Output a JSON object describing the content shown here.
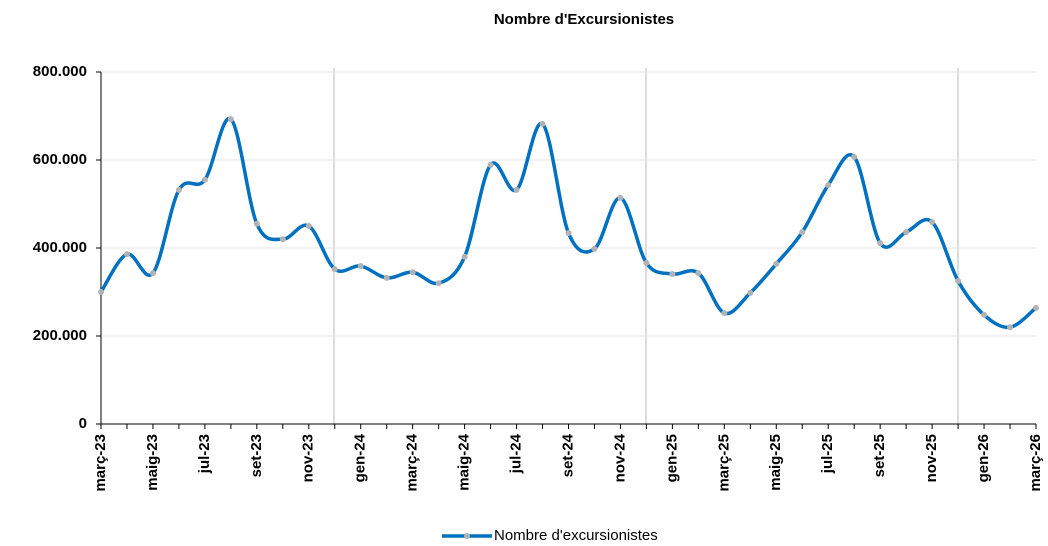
{
  "chart_data": {
    "type": "line",
    "title": "Nombre d'Excursionistes",
    "categories": [
      "març-23",
      null,
      "maig-23",
      null,
      "jul-23",
      null,
      "set-23",
      null,
      "nov-23",
      null,
      "gen-24",
      null,
      "març-24",
      null,
      "maig-24",
      null,
      "jul-24",
      null,
      "set-24",
      null,
      "nov-24",
      null,
      "gen-25",
      null,
      "març-25",
      null,
      "maig-25",
      null,
      "jul-25",
      null,
      "set-25",
      null,
      "nov-25",
      null,
      "gen-26",
      null,
      "març-26"
    ],
    "series": [
      {
        "name": "Nombre d'excursionistes",
        "color": "#0070c0",
        "marker_color": "#b3b3b3",
        "values": [
          300000,
          386000,
          343000,
          532000,
          555000,
          693000,
          455000,
          420000,
          450000,
          352000,
          359000,
          332000,
          345000,
          320000,
          380000,
          589000,
          532000,
          682000,
          434000,
          398000,
          514000,
          366000,
          341000,
          343000,
          252000,
          298000,
          364000,
          436000,
          543000,
          607000,
          411000,
          436000,
          459000,
          325000,
          248000,
          220000,
          264000
        ]
      }
    ],
    "ylim": [
      0,
      800000
    ],
    "yticks": [
      0,
      {
        "value": 200000,
        "label": "200.000"
      },
      {
        "value": 400000,
        "label": "400.000"
      },
      {
        "value": 600000,
        "label": "600.000"
      },
      {
        "value": 800000,
        "label": "800.000"
      }
    ],
    "grid": true,
    "legend": "bottom"
  }
}
